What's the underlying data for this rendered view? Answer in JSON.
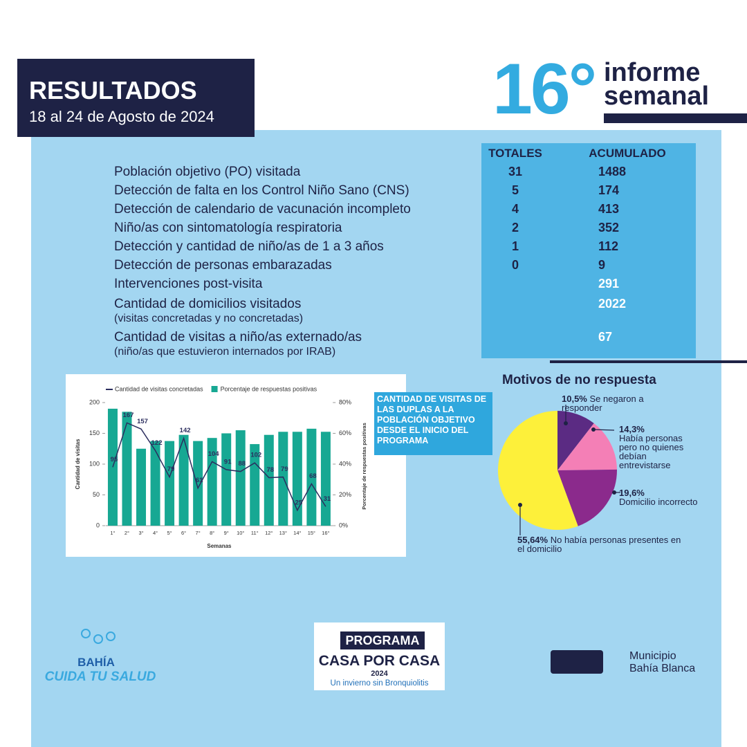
{
  "header": {
    "title": "RESULTADOS",
    "dates": "18 al 24 de Agosto de 2024",
    "report_number": "16°",
    "report_label": "informe semanal"
  },
  "table": {
    "columns": [
      "TOTALES",
      "ACUMULADO"
    ],
    "rows": [
      {
        "label": "Población objetivo (PO) visitada",
        "totales": 31,
        "acumulado": 1488
      },
      {
        "label": "Detección de falta en los Control Niño Sano (CNS)",
        "totales": 5,
        "acumulado": 174
      },
      {
        "label": "Detección de calendario de vacunación incompleto",
        "totales": 4,
        "acumulado": 413
      },
      {
        "label": "Niño/as con sintomatología respiratoria",
        "totales": 2,
        "acumulado": 352
      },
      {
        "label": "Detección y cantidad de niño/as de 1 a 3 años",
        "totales": 1,
        "acumulado": 112
      },
      {
        "label": "Detección de personas embarazadas",
        "totales": 0,
        "acumulado": 9
      },
      {
        "label": "Intervenciones post-visita",
        "acumulado": 291
      },
      {
        "label": "Cantidad de domicilios visitados",
        "note": "(visitas concretadas y no concretadas)",
        "acumulado": 2022
      },
      {
        "label": "Cantidad de visitas a niño/as externado/as",
        "note": "(niño/as que estuvieron internados por IRAB)",
        "acumulado": 67
      }
    ]
  },
  "chart_data": [
    {
      "type": "bar",
      "categories": [
        "1°",
        "2°",
        "3°",
        "4°",
        "5°",
        "6°",
        "7°",
        "8°",
        "9°",
        "10°",
        "11°",
        "12°",
        "13°",
        "14°",
        "15°",
        "16°"
      ],
      "series": [
        {
          "name": "Cantidad de visitas concretadas",
          "type": "line",
          "color": "#2b2d5e",
          "values": [
            95,
            167,
            157,
            122,
            79,
            142,
            61,
            104,
            91,
            88,
            102,
            78,
            79,
            25,
            68,
            31
          ]
        },
        {
          "name": "Porcentaje de respuestas positivas",
          "type": "bar",
          "axis": "y2",
          "color": "#17a893",
          "values": [
            76,
            74,
            50,
            55,
            55,
            59,
            55,
            57,
            60,
            62,
            53,
            59,
            61,
            61,
            63,
            61
          ]
        }
      ],
      "xlabel": "Semanas",
      "ylabel": "Cantidad de visitas",
      "y2label": "Porcentaje de respuestas positivas",
      "ylim": [
        0,
        200
      ],
      "yticks": [
        0,
        50,
        100,
        150,
        200
      ],
      "y2lim": [
        0,
        80
      ],
      "y2ticks": [
        {
          "value": 0,
          "label": "0%"
        },
        {
          "value": 20,
          "label": "20%"
        },
        {
          "value": 40,
          "label": "40%"
        },
        {
          "value": 60,
          "label": "60%"
        },
        {
          "value": 80,
          "label": "80%"
        }
      ],
      "annotation": "CANTIDAD DE VISITAS DE LAS DUPLAS A LA POBLACIÓN OBJETIVO DESDE EL INICIO DEL PROGRAMA"
    },
    {
      "type": "pie",
      "title": "Motivos de no respuesta",
      "categories": [
        "Se negaron a responder",
        "Había personas pero no quienes debían entrevistarse",
        "Domicilio incorrecto",
        "No había personas presentes en el domicilio"
      ],
      "values": [
        10.5,
        14.3,
        19.6,
        55.64
      ],
      "value_labels": [
        "10,5%",
        "14,3%",
        "19,6%",
        "55,64%"
      ],
      "colors": [
        "#5b2b83",
        "#f47fb6",
        "#8b2a8c",
        "#fdf03a"
      ]
    }
  ],
  "footer": {
    "logo_left": {
      "name": "BAHÍA",
      "slogan": "CUIDA TU SALUD"
    },
    "program": {
      "label": "PROGRAMA",
      "name": "CASA POR CASA",
      "year": "2024",
      "slogan": "Un invierno sin Bronquiolitis"
    },
    "municipality": "Municipio Bahía Blanca"
  }
}
